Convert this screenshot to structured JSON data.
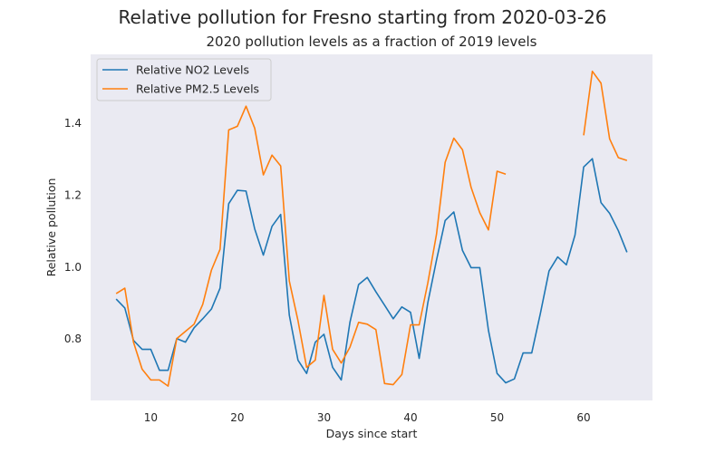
{
  "chart_data": {
    "type": "line",
    "title": "Relative pollution for Fresno starting from 2020-03-26",
    "subtitle": "2020 pollution levels as a fraction of 2019 levels",
    "xlabel": "Days since start",
    "ylabel": "Relative pollution",
    "xlim": [
      3.05,
      67.95
    ],
    "ylim": [
      0.628,
      1.59
    ],
    "xticks": [
      10,
      20,
      30,
      40,
      50,
      60
    ],
    "yticks": [
      0.8,
      1.0,
      1.2,
      1.4
    ],
    "xtick_labels": [
      "10",
      "20",
      "30",
      "40",
      "50",
      "60"
    ],
    "ytick_labels": [
      "0.8",
      "1.0",
      "1.2",
      "1.4"
    ],
    "grid": false,
    "background": "#eaeaf2",
    "legend_position": "upper left",
    "series": [
      {
        "name": "Relative NO2 Levels",
        "color": "#1f77b4",
        "points": [
          [
            6,
            0.91
          ],
          [
            7,
            0.885
          ],
          [
            8,
            0.795
          ],
          [
            9,
            0.77
          ],
          [
            10,
            0.77
          ],
          [
            11,
            0.712
          ],
          [
            12,
            0.712
          ],
          [
            13,
            0.8
          ],
          [
            14,
            0.79
          ],
          [
            15,
            0.83
          ],
          [
            16,
            0.855
          ],
          [
            17,
            0.882
          ],
          [
            18,
            0.94
          ],
          [
            19,
            1.175
          ],
          [
            20,
            1.212
          ],
          [
            21,
            1.21
          ],
          [
            22,
            1.105
          ],
          [
            23,
            1.032
          ],
          [
            24,
            1.112
          ],
          [
            25,
            1.145
          ],
          [
            26,
            0.865
          ],
          [
            27,
            0.74
          ],
          [
            28,
            0.703
          ],
          [
            29,
            0.79
          ],
          [
            30,
            0.812
          ],
          [
            31,
            0.72
          ],
          [
            32,
            0.685
          ],
          [
            33,
            0.845
          ],
          [
            34,
            0.95
          ],
          [
            35,
            0.97
          ],
          [
            36,
            0.93
          ],
          [
            37,
            0.893
          ],
          [
            38,
            0.855
          ],
          [
            39,
            0.888
          ],
          [
            40,
            0.873
          ],
          [
            41,
            0.745
          ],
          [
            42,
            0.9
          ],
          [
            43,
            1.018
          ],
          [
            44,
            1.128
          ],
          [
            45,
            1.152
          ],
          [
            46,
            1.045
          ],
          [
            47,
            0.997
          ],
          [
            48,
            0.997
          ],
          [
            49,
            0.823
          ],
          [
            50,
            0.703
          ],
          [
            51,
            0.677
          ],
          [
            52,
            0.688
          ],
          [
            53,
            0.76
          ],
          [
            54,
            0.76
          ],
          [
            55,
            0.87
          ],
          [
            56,
            0.988
          ],
          [
            57,
            1.027
          ],
          [
            58,
            1.005
          ],
          [
            59,
            1.088
          ],
          [
            60,
            1.277
          ],
          [
            61,
            1.3
          ],
          [
            62,
            1.178
          ],
          [
            63,
            1.148
          ],
          [
            64,
            1.1
          ],
          [
            65,
            1.04
          ]
        ]
      },
      {
        "name": "Relative PM2.5 Levels",
        "color": "#ff7f0e",
        "points": [
          [
            6,
            0.925
          ],
          [
            7,
            0.94
          ],
          [
            8,
            0.79
          ],
          [
            9,
            0.715
          ],
          [
            10,
            0.685
          ],
          [
            11,
            0.685
          ],
          [
            12,
            0.668
          ],
          [
            13,
            0.8
          ],
          [
            14,
            0.82
          ],
          [
            15,
            0.84
          ],
          [
            16,
            0.895
          ],
          [
            17,
            0.99
          ],
          [
            18,
            1.048
          ],
          [
            19,
            1.38
          ],
          [
            20,
            1.39
          ],
          [
            21,
            1.446
          ],
          [
            22,
            1.385
          ],
          [
            23,
            1.255
          ],
          [
            24,
            1.31
          ],
          [
            25,
            1.28
          ],
          [
            26,
            0.96
          ],
          [
            27,
            0.85
          ],
          [
            28,
            0.72
          ],
          [
            29,
            0.74
          ],
          [
            30,
            0.92
          ],
          [
            31,
            0.77
          ],
          [
            32,
            0.732
          ],
          [
            33,
            0.776
          ],
          [
            34,
            0.845
          ],
          [
            35,
            0.84
          ],
          [
            36,
            0.825
          ],
          [
            37,
            0.675
          ],
          [
            38,
            0.672
          ],
          [
            39,
            0.7
          ],
          [
            40,
            0.838
          ],
          [
            41,
            0.838
          ],
          [
            42,
            0.955
          ],
          [
            43,
            1.09
          ],
          [
            44,
            1.29
          ],
          [
            45,
            1.357
          ],
          [
            46,
            1.325
          ],
          [
            47,
            1.22
          ],
          [
            48,
            1.15
          ],
          [
            49,
            1.102
          ],
          [
            50,
            1.265
          ],
          [
            51,
            1.257
          ],
          [
            52,
            null
          ],
          [
            53,
            null
          ],
          [
            54,
            null
          ],
          [
            55,
            null
          ],
          [
            56,
            null
          ],
          [
            57,
            null
          ],
          [
            58,
            null
          ],
          [
            59,
            null
          ],
          [
            60,
            1.365
          ],
          [
            61,
            1.543
          ],
          [
            62,
            1.51
          ],
          [
            63,
            1.355
          ],
          [
            64,
            1.303
          ],
          [
            65,
            1.295
          ]
        ]
      }
    ]
  }
}
